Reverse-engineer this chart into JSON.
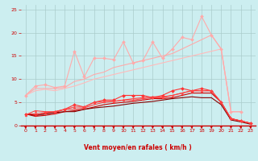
{
  "bg_color": "#cceef0",
  "grid_color": "#aacccc",
  "xlabel": "Vent moyen/en rafales ( km/h )",
  "xlim": [
    -0.5,
    23.5
  ],
  "ylim": [
    0,
    26
  ],
  "yticks": [
    0,
    5,
    10,
    15,
    20,
    25
  ],
  "xticks": [
    0,
    1,
    2,
    3,
    4,
    5,
    6,
    7,
    8,
    9,
    10,
    11,
    12,
    13,
    14,
    15,
    16,
    17,
    18,
    19,
    20,
    21,
    22,
    23
  ],
  "series": [
    {
      "x": [
        0,
        1,
        2,
        3,
        4,
        5,
        6,
        7,
        8,
        9,
        10,
        11,
        12,
        13,
        14,
        15,
        16,
        17,
        18,
        19,
        20,
        21,
        22
      ],
      "y": [
        6.5,
        8.5,
        8.8,
        8.2,
        8.5,
        16.0,
        10.5,
        14.5,
        14.5,
        14.2,
        18.0,
        13.5,
        14.0,
        18.0,
        14.5,
        16.5,
        19.0,
        18.5,
        23.5,
        19.5,
        16.5,
        3.0,
        3.0
      ],
      "color": "#ffaaaa",
      "lw": 0.8,
      "marker": "D",
      "ms": 2.0
    },
    {
      "x": [
        0,
        1,
        2,
        3,
        4,
        5,
        6,
        7,
        8,
        9,
        10,
        11,
        12,
        13,
        14,
        15,
        16,
        17,
        18,
        19,
        20,
        21,
        22
      ],
      "y": [
        6.5,
        8.0,
        8.0,
        8.0,
        8.2,
        9.5,
        10.0,
        11.0,
        11.5,
        12.5,
        13.0,
        13.5,
        14.0,
        14.5,
        15.0,
        15.5,
        16.5,
        17.5,
        18.5,
        19.5,
        16.5,
        3.0,
        3.0
      ],
      "color": "#ffaaaa",
      "lw": 0.8,
      "marker": null,
      "ms": 0
    },
    {
      "x": [
        0,
        1,
        2,
        3,
        4,
        5,
        6,
        7,
        8,
        9,
        10,
        11,
        12,
        13,
        14,
        15,
        16,
        17,
        18,
        19,
        20,
        21,
        22
      ],
      "y": [
        6.5,
        7.5,
        7.8,
        7.5,
        8.0,
        8.5,
        9.2,
        10.0,
        10.5,
        11.0,
        11.5,
        12.0,
        12.5,
        13.0,
        13.5,
        14.0,
        14.5,
        15.0,
        15.5,
        16.0,
        16.5,
        3.0,
        3.0
      ],
      "color": "#ffbbbb",
      "lw": 0.8,
      "marker": null,
      "ms": 0
    },
    {
      "x": [
        0,
        1,
        2,
        3,
        4,
        5,
        6,
        7,
        8,
        9,
        10,
        11,
        12,
        13,
        14,
        15,
        16,
        17,
        18,
        19,
        20,
        21,
        22,
        23
      ],
      "y": [
        2.5,
        2.5,
        2.8,
        3.0,
        3.5,
        4.5,
        4.0,
        5.0,
        5.5,
        5.5,
        6.5,
        6.5,
        6.5,
        6.0,
        6.5,
        7.5,
        8.0,
        7.5,
        8.0,
        7.5,
        5.0,
        1.5,
        1.0,
        0.5
      ],
      "color": "#ff3333",
      "lw": 0.8,
      "marker": "D",
      "ms": 2.0
    },
    {
      "x": [
        0,
        1,
        2,
        3,
        4,
        5,
        6,
        7,
        8,
        9,
        10,
        11,
        12,
        13,
        14,
        15,
        16,
        17,
        18,
        19,
        20,
        21,
        22,
        23
      ],
      "y": [
        2.5,
        2.2,
        2.5,
        2.8,
        3.5,
        3.5,
        3.8,
        4.5,
        5.0,
        5.2,
        5.5,
        5.8,
        6.0,
        6.2,
        6.2,
        6.5,
        7.0,
        7.5,
        7.5,
        7.5,
        5.0,
        1.5,
        1.0,
        0.5
      ],
      "color": "#ff4444",
      "lw": 0.8,
      "marker": null,
      "ms": 0
    },
    {
      "x": [
        0,
        1,
        2,
        3,
        4,
        5,
        6,
        7,
        8,
        9,
        10,
        11,
        12,
        13,
        14,
        15,
        16,
        17,
        18,
        19,
        20,
        21,
        22,
        23
      ],
      "y": [
        2.5,
        2.0,
        2.2,
        2.5,
        3.0,
        3.2,
        3.5,
        4.0,
        4.5,
        4.8,
        5.0,
        5.2,
        5.5,
        5.8,
        5.8,
        6.0,
        6.5,
        7.0,
        7.0,
        7.0,
        5.0,
        1.5,
        1.0,
        0.5
      ],
      "color": "#cc0000",
      "lw": 0.8,
      "marker": null,
      "ms": 0
    },
    {
      "x": [
        0,
        1,
        2,
        3,
        4,
        5,
        6,
        7,
        8,
        9,
        10,
        11,
        12,
        13,
        14,
        15,
        16,
        17,
        18,
        19,
        20,
        21,
        22,
        23
      ],
      "y": [
        2.3,
        3.2,
        3.0,
        3.0,
        3.5,
        4.0,
        4.0,
        5.0,
        5.2,
        5.2,
        5.5,
        5.5,
        5.8,
        6.0,
        6.0,
        6.5,
        7.0,
        7.5,
        7.5,
        7.5,
        5.0,
        1.5,
        1.0,
        0.5
      ],
      "color": "#ff4444",
      "lw": 0.8,
      "marker": "^",
      "ms": 2.0
    },
    {
      "x": [
        0,
        1,
        2,
        3,
        4,
        5,
        6,
        7,
        8,
        9,
        10,
        11,
        12,
        13,
        14,
        15,
        16,
        17,
        18,
        19,
        20,
        21,
        22,
        23
      ],
      "y": [
        2.5,
        2.2,
        2.5,
        2.8,
        3.0,
        3.0,
        3.5,
        3.8,
        4.0,
        4.2,
        4.5,
        4.8,
        5.0,
        5.2,
        5.5,
        5.8,
        6.0,
        6.2,
        6.0,
        6.0,
        4.5,
        1.2,
        0.8,
        0.3
      ],
      "color": "#880000",
      "lw": 0.8,
      "marker": null,
      "ms": 0
    }
  ]
}
